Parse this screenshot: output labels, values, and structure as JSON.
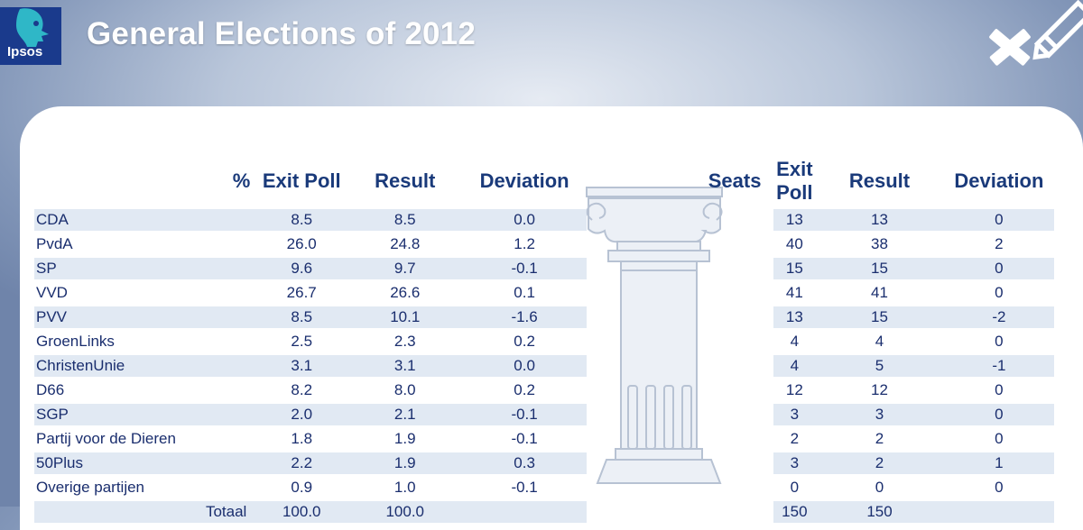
{
  "header": {
    "title": "General Elections of 2012",
    "logo_text": "Ipsos"
  },
  "colors": {
    "header_text": "#1a3a7a",
    "row_band": "#d8e3f0",
    "logo_bg": "#1a3a8c"
  },
  "icons": [
    "ipsos-logo-icon",
    "ballot-cross-pencil-icon",
    "column-pillar-icon"
  ],
  "chart_data": {
    "type": "table",
    "columns": {
      "percent_group": [
        "%",
        "Exit Poll",
        "Result",
        "Deviation"
      ],
      "seats_group": [
        "Seats",
        "Exit Poll",
        "Result",
        "Deviation"
      ]
    },
    "rows": [
      {
        "party": "CDA",
        "pct_exit": "8.5",
        "pct_result": "8.5",
        "pct_dev": "0.0",
        "seats_exit": "13",
        "seats_result": "13",
        "seats_dev": "0"
      },
      {
        "party": "PvdA",
        "pct_exit": "26.0",
        "pct_result": "24.8",
        "pct_dev": "1.2",
        "seats_exit": "40",
        "seats_result": "38",
        "seats_dev": "2"
      },
      {
        "party": "SP",
        "pct_exit": "9.6",
        "pct_result": "9.7",
        "pct_dev": "-0.1",
        "seats_exit": "15",
        "seats_result": "15",
        "seats_dev": "0"
      },
      {
        "party": "VVD",
        "pct_exit": "26.7",
        "pct_result": "26.6",
        "pct_dev": "0.1",
        "seats_exit": "41",
        "seats_result": "41",
        "seats_dev": "0"
      },
      {
        "party": "PVV",
        "pct_exit": "8.5",
        "pct_result": "10.1",
        "pct_dev": "-1.6",
        "seats_exit": "13",
        "seats_result": "15",
        "seats_dev": "-2"
      },
      {
        "party": "GroenLinks",
        "pct_exit": "2.5",
        "pct_result": "2.3",
        "pct_dev": "0.2",
        "seats_exit": "4",
        "seats_result": "4",
        "seats_dev": "0"
      },
      {
        "party": "ChristenUnie",
        "pct_exit": "3.1",
        "pct_result": "3.1",
        "pct_dev": "0.0",
        "seats_exit": "4",
        "seats_result": "5",
        "seats_dev": "-1"
      },
      {
        "party": "D66",
        "pct_exit": "8.2",
        "pct_result": "8.0",
        "pct_dev": "0.2",
        "seats_exit": "12",
        "seats_result": "12",
        "seats_dev": "0"
      },
      {
        "party": "SGP",
        "pct_exit": "2.0",
        "pct_result": "2.1",
        "pct_dev": "-0.1",
        "seats_exit": "3",
        "seats_result": "3",
        "seats_dev": "0"
      },
      {
        "party": "Partij voor de Dieren",
        "pct_exit": "1.8",
        "pct_result": "1.9",
        "pct_dev": "-0.1",
        "seats_exit": "2",
        "seats_result": "2",
        "seats_dev": "0"
      },
      {
        "party": "50Plus",
        "pct_exit": "2.2",
        "pct_result": "1.9",
        "pct_dev": "0.3",
        "seats_exit": "3",
        "seats_result": "2",
        "seats_dev": "1"
      },
      {
        "party": "Overige partijen",
        "pct_exit": "0.9",
        "pct_result": "1.0",
        "pct_dev": "-0.1",
        "seats_exit": "0",
        "seats_result": "0",
        "seats_dev": "0"
      }
    ],
    "total": {
      "label": "Totaal",
      "pct_exit": "100.0",
      "pct_result": "100.0",
      "seats_exit": "150",
      "seats_result": "150"
    }
  }
}
